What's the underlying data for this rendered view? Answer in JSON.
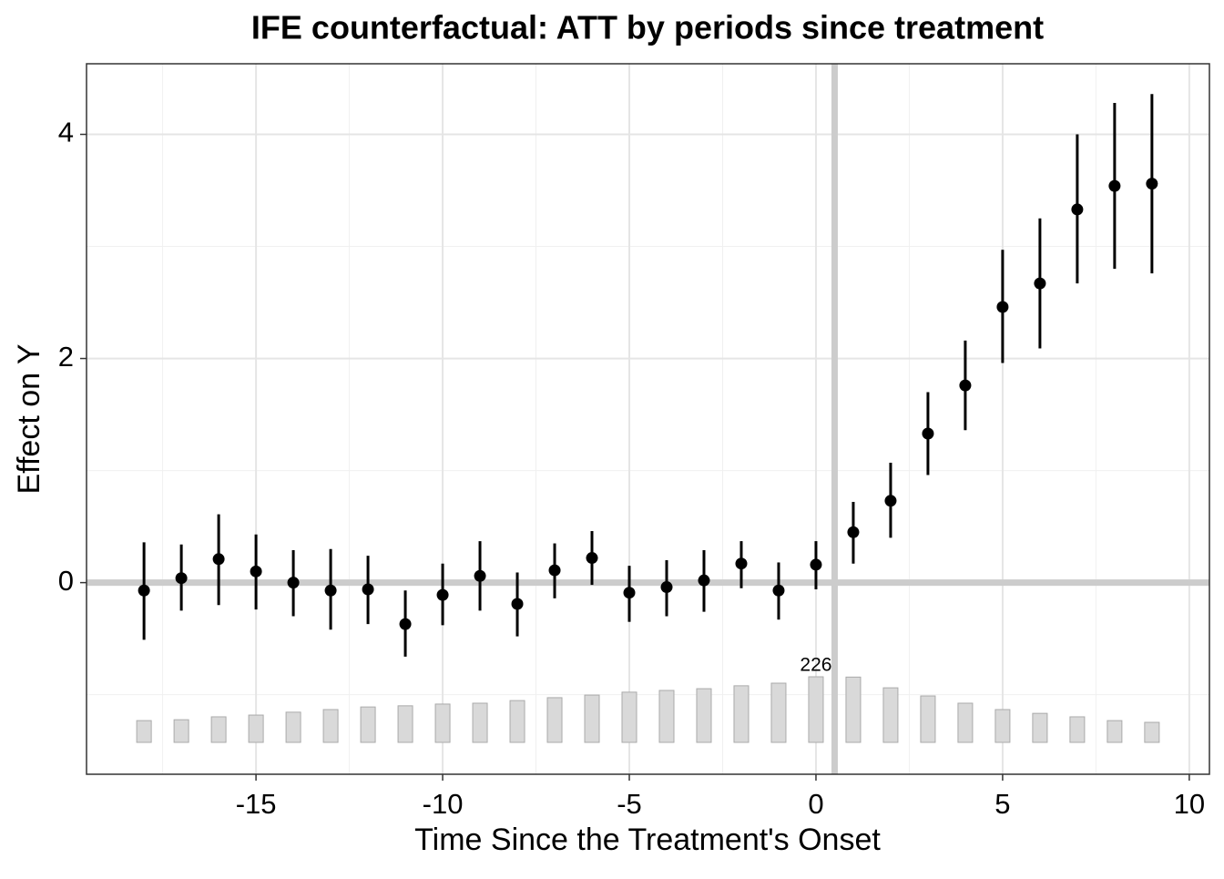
{
  "chart_data": {
    "type": "errorbar",
    "title": "IFE counterfactual: ATT by periods since treatment",
    "xlabel": "Time Since the Treatment's Onset",
    "ylabel": "Effect on Y",
    "x": [
      -18,
      -17,
      -16,
      -15,
      -14,
      -13,
      -12,
      -11,
      -10,
      -9,
      -8,
      -7,
      -6,
      -5,
      -4,
      -3,
      -2,
      -1,
      0,
      1,
      2,
      3,
      4,
      5,
      6,
      7,
      8,
      9
    ],
    "values": [
      -0.07,
      0.04,
      0.21,
      0.1,
      0.0,
      -0.07,
      -0.06,
      -0.37,
      -0.11,
      0.06,
      -0.19,
      0.11,
      0.22,
      -0.09,
      -0.04,
      0.02,
      0.17,
      -0.07,
      0.16,
      0.45,
      0.73,
      1.33,
      1.76,
      2.46,
      2.67,
      3.33,
      3.54,
      3.56
    ],
    "upper": [
      0.36,
      0.34,
      0.61,
      0.43,
      0.29,
      0.3,
      0.24,
      -0.07,
      0.17,
      0.37,
      0.09,
      0.35,
      0.46,
      0.15,
      0.2,
      0.29,
      0.37,
      0.18,
      0.37,
      0.72,
      1.07,
      1.7,
      2.16,
      2.97,
      3.25,
      4.0,
      4.28,
      4.36
    ],
    "lower": [
      -0.51,
      -0.25,
      -0.2,
      -0.24,
      -0.3,
      -0.42,
      -0.37,
      -0.66,
      -0.38,
      -0.25,
      -0.48,
      -0.14,
      -0.02,
      -0.35,
      -0.3,
      -0.26,
      -0.05,
      -0.33,
      -0.06,
      0.17,
      0.4,
      0.96,
      1.36,
      1.96,
      2.09,
      2.67,
      2.8,
      2.76
    ],
    "counts": [
      75,
      78,
      88,
      94,
      104,
      113,
      122,
      126,
      132,
      135,
      144,
      154,
      163,
      173,
      179,
      185,
      195,
      204,
      226,
      225,
      188,
      160,
      135,
      113,
      100,
      88,
      75,
      69
    ],
    "count_label_index": 18,
    "color": "#000000",
    "count_color": "#d9d9d9",
    "hline": 0,
    "vline": 0.5,
    "xlim": [
      -19.54,
      10.54
    ],
    "xticks": [
      -15,
      -10,
      -5,
      0,
      5,
      10
    ],
    "ylim": [
      -1.71,
      4.63
    ],
    "yticks": [
      0,
      2,
      4
    ],
    "grid": true
  }
}
